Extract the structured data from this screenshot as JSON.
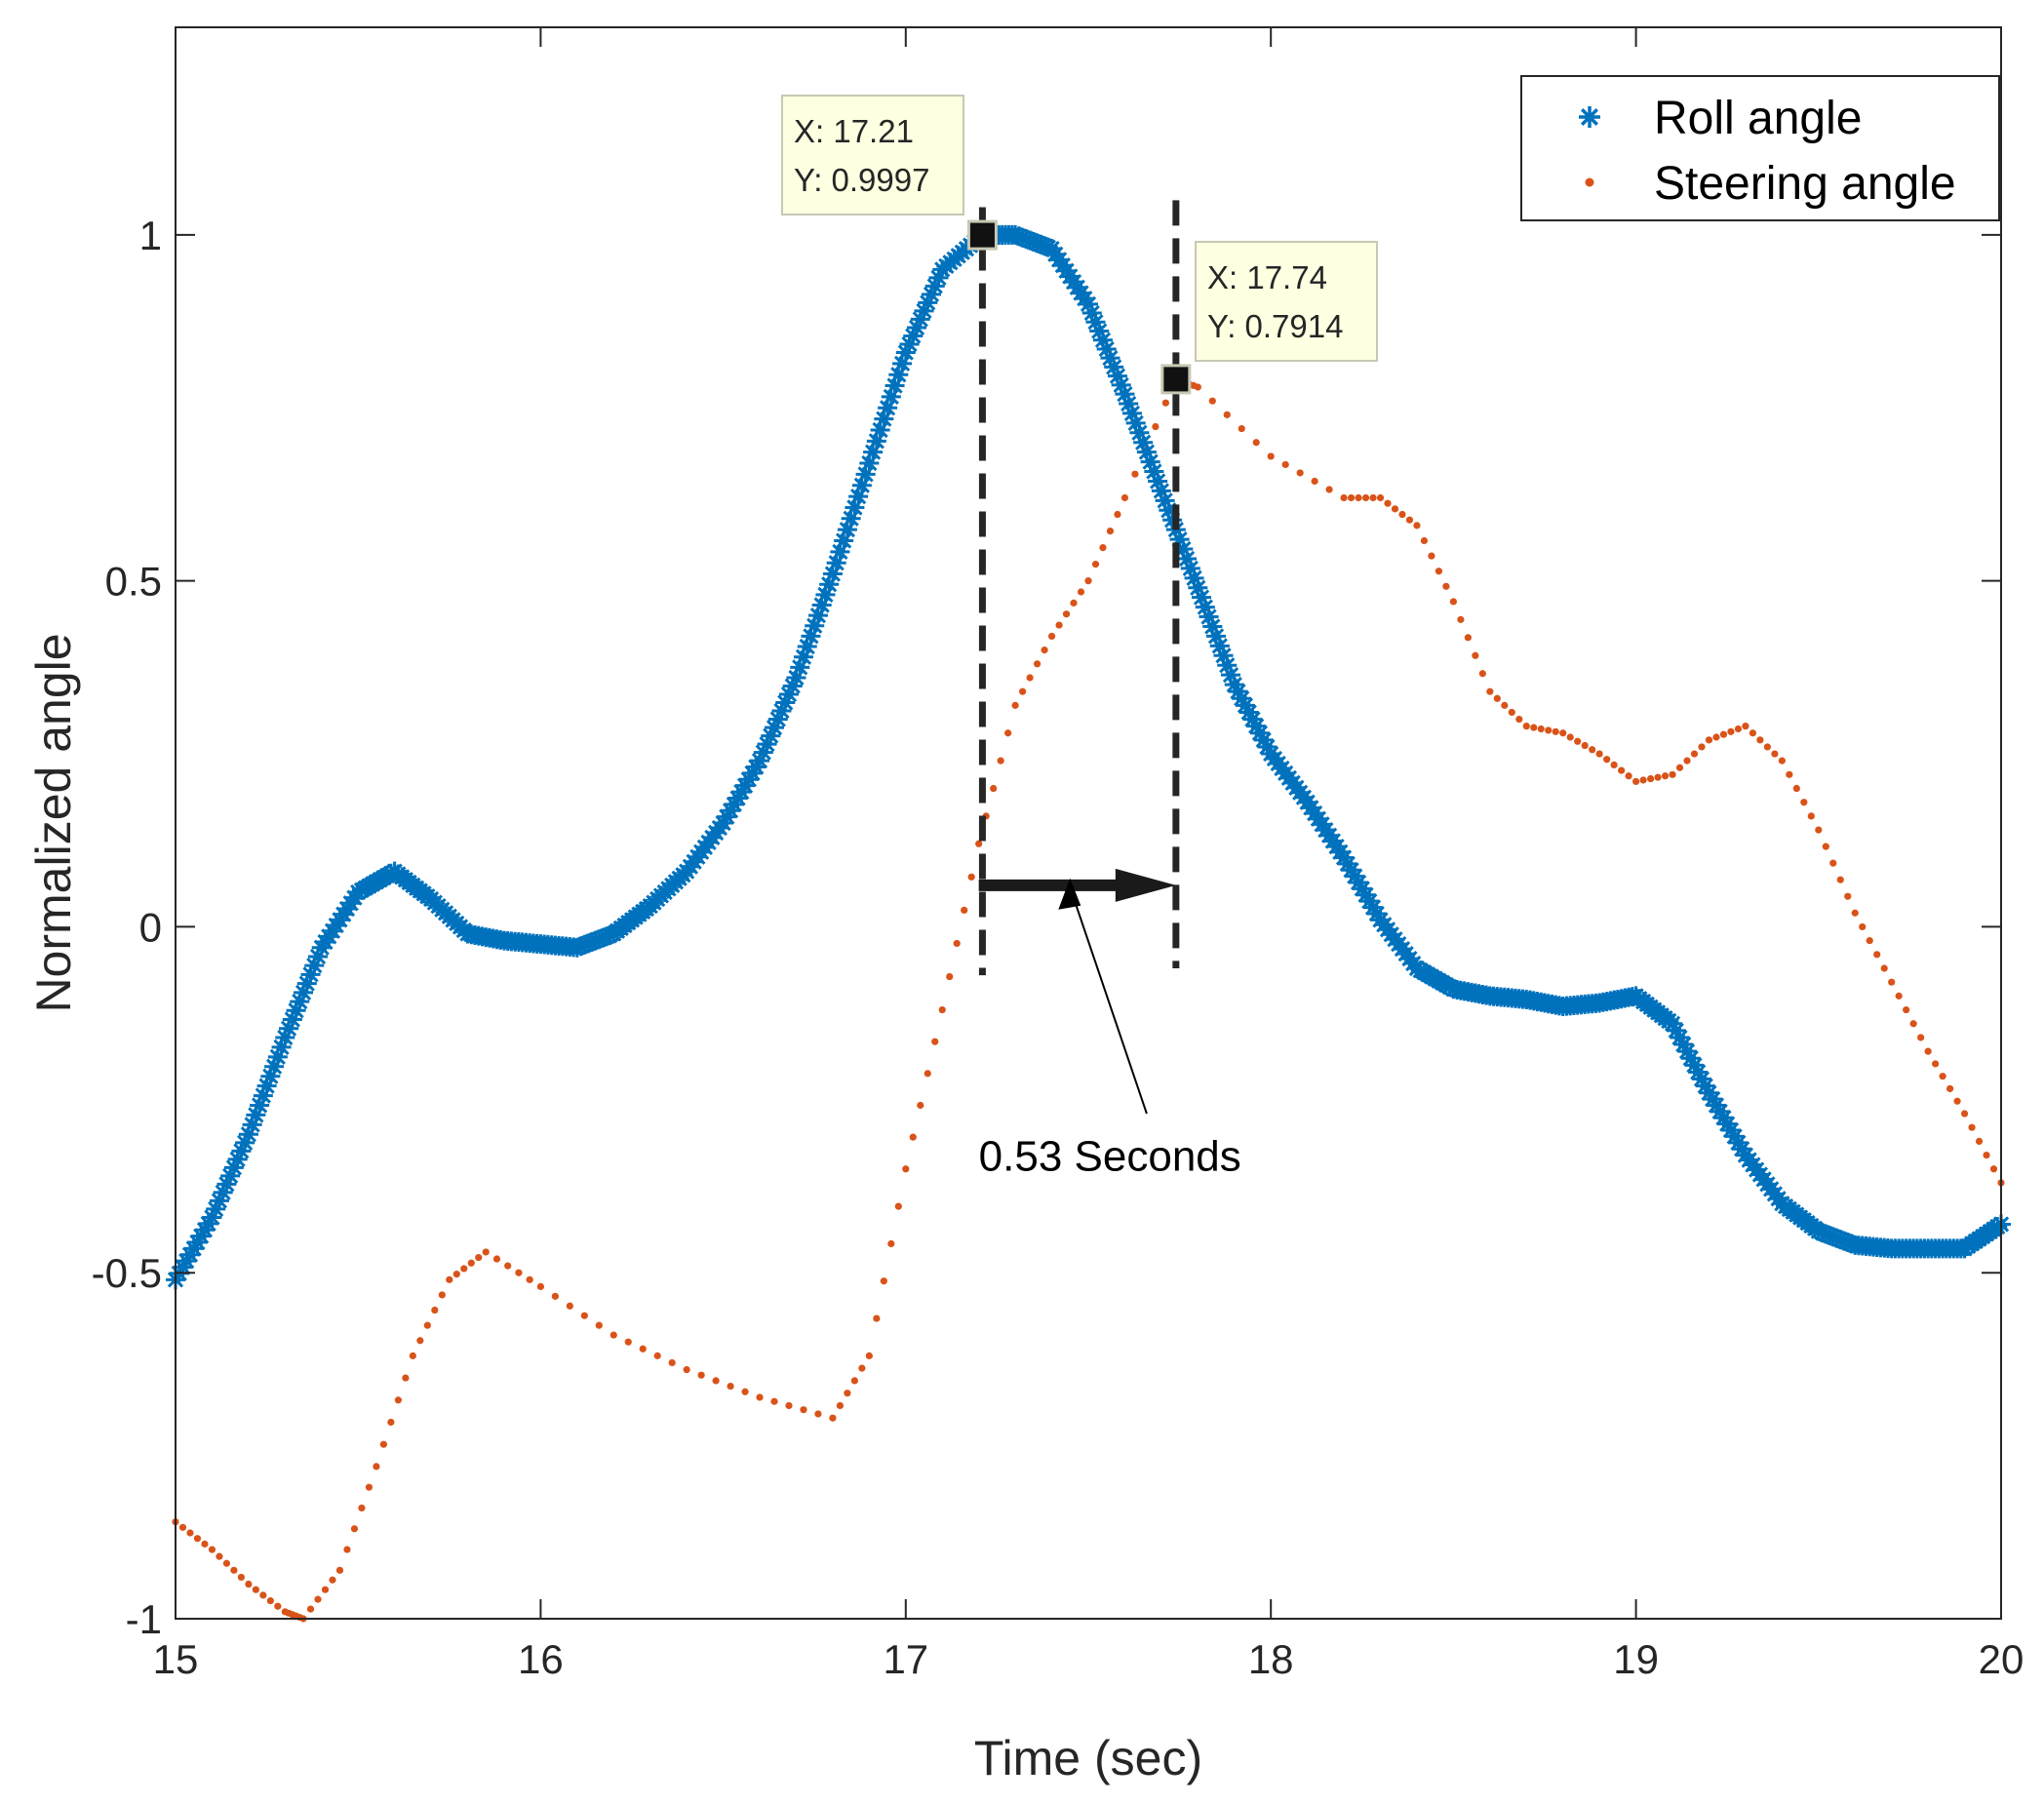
{
  "chart_data": {
    "type": "scatter",
    "xlabel": "Time (sec)",
    "ylabel": "Normalized angle",
    "xlim": [
      15,
      20
    ],
    "ylim": [
      -1,
      1.3
    ],
    "xticks": [
      "15",
      "16",
      "17",
      "18",
      "19",
      "20"
    ],
    "yticks": [
      "-1",
      "-0.5",
      "0",
      "0.5",
      "1"
    ],
    "grid": false,
    "legend_position": "top-right",
    "series": [
      {
        "name": "Roll angle",
        "marker": "asterisk",
        "color": "#0072BD",
        "points": [
          [
            15.0,
            -0.51
          ],
          [
            15.1,
            -0.42
          ],
          [
            15.2,
            -0.3
          ],
          [
            15.3,
            -0.16
          ],
          [
            15.4,
            -0.03
          ],
          [
            15.5,
            0.05
          ],
          [
            15.6,
            0.08
          ],
          [
            15.7,
            0.04
          ],
          [
            15.8,
            -0.01
          ],
          [
            15.9,
            -0.02
          ],
          [
            16.0,
            -0.025
          ],
          [
            16.1,
            -0.03
          ],
          [
            16.2,
            -0.01
          ],
          [
            16.3,
            0.03
          ],
          [
            16.4,
            0.08
          ],
          [
            16.5,
            0.15
          ],
          [
            16.6,
            0.24
          ],
          [
            16.7,
            0.36
          ],
          [
            16.8,
            0.51
          ],
          [
            16.9,
            0.67
          ],
          [
            17.0,
            0.83
          ],
          [
            17.1,
            0.95
          ],
          [
            17.21,
            0.9997
          ],
          [
            17.3,
            1.0
          ],
          [
            17.4,
            0.98
          ],
          [
            17.5,
            0.9
          ],
          [
            17.6,
            0.77
          ],
          [
            17.7,
            0.63
          ],
          [
            17.8,
            0.49
          ],
          [
            17.9,
            0.35
          ],
          [
            18.0,
            0.25
          ],
          [
            18.1,
            0.18
          ],
          [
            18.2,
            0.1
          ],
          [
            18.3,
            0.01
          ],
          [
            18.4,
            -0.06
          ],
          [
            18.5,
            -0.09
          ],
          [
            18.6,
            -0.1
          ],
          [
            18.7,
            -0.105
          ],
          [
            18.8,
            -0.115
          ],
          [
            18.9,
            -0.11
          ],
          [
            19.0,
            -0.1
          ],
          [
            19.1,
            -0.14
          ],
          [
            19.2,
            -0.24
          ],
          [
            19.3,
            -0.33
          ],
          [
            19.4,
            -0.4
          ],
          [
            19.5,
            -0.44
          ],
          [
            19.6,
            -0.46
          ],
          [
            19.7,
            -0.465
          ],
          [
            19.8,
            -0.465
          ],
          [
            19.9,
            -0.465
          ],
          [
            20.0,
            -0.43
          ]
        ]
      },
      {
        "name": "Steering angle",
        "marker": "dot",
        "color": "#D95319",
        "points": [
          [
            15.0,
            -0.86
          ],
          [
            15.1,
            -0.9
          ],
          [
            15.2,
            -0.95
          ],
          [
            15.3,
            -0.99
          ],
          [
            15.35,
            -1.0
          ],
          [
            15.45,
            -0.93
          ],
          [
            15.55,
            -0.78
          ],
          [
            15.65,
            -0.62
          ],
          [
            15.75,
            -0.51
          ],
          [
            15.85,
            -0.47
          ],
          [
            16.0,
            -0.52
          ],
          [
            16.2,
            -0.59
          ],
          [
            16.4,
            -0.64
          ],
          [
            16.6,
            -0.68
          ],
          [
            16.8,
            -0.71
          ],
          [
            16.9,
            -0.62
          ],
          [
            17.0,
            -0.35
          ],
          [
            17.1,
            -0.12
          ],
          [
            17.2,
            0.12
          ],
          [
            17.3,
            0.32
          ],
          [
            17.4,
            0.42
          ],
          [
            17.5,
            0.5
          ],
          [
            17.6,
            0.62
          ],
          [
            17.74,
            0.7914
          ],
          [
            17.8,
            0.78
          ],
          [
            18.0,
            0.68
          ],
          [
            18.2,
            0.62
          ],
          [
            18.3,
            0.62
          ],
          [
            18.4,
            0.58
          ],
          [
            18.5,
            0.47
          ],
          [
            18.6,
            0.34
          ],
          [
            18.7,
            0.29
          ],
          [
            18.8,
            0.28
          ],
          [
            18.9,
            0.25
          ],
          [
            19.0,
            0.21
          ],
          [
            19.1,
            0.22
          ],
          [
            19.2,
            0.27
          ],
          [
            19.3,
            0.29
          ],
          [
            19.4,
            0.24
          ],
          [
            19.5,
            0.14
          ],
          [
            19.6,
            0.02
          ],
          [
            19.7,
            -0.08
          ],
          [
            19.8,
            -0.18
          ],
          [
            19.9,
            -0.27
          ],
          [
            20.0,
            -0.37
          ]
        ]
      }
    ],
    "datatips": [
      {
        "x": 17.21,
        "y": 0.9997,
        "x_label": "X: 17.21",
        "y_label": "Y: 0.9997"
      },
      {
        "x": 17.74,
        "y": 0.7914,
        "x_label": "X: 17.74",
        "y_label": "Y: 0.7914"
      }
    ],
    "reference_lines": [
      {
        "x": 17.21,
        "y_from": -0.07,
        "y_to": 1.04
      },
      {
        "x": 17.74,
        "y_from": -0.06,
        "y_to": 1.05
      }
    ],
    "span_arrow": {
      "x_from": 17.2,
      "x_to": 17.74,
      "y": 0.06
    },
    "annotation": {
      "text": "0.53 Seconds",
      "x": 17.2,
      "y": -0.33,
      "pointer_x": 17.45,
      "pointer_y": 0.07
    }
  }
}
